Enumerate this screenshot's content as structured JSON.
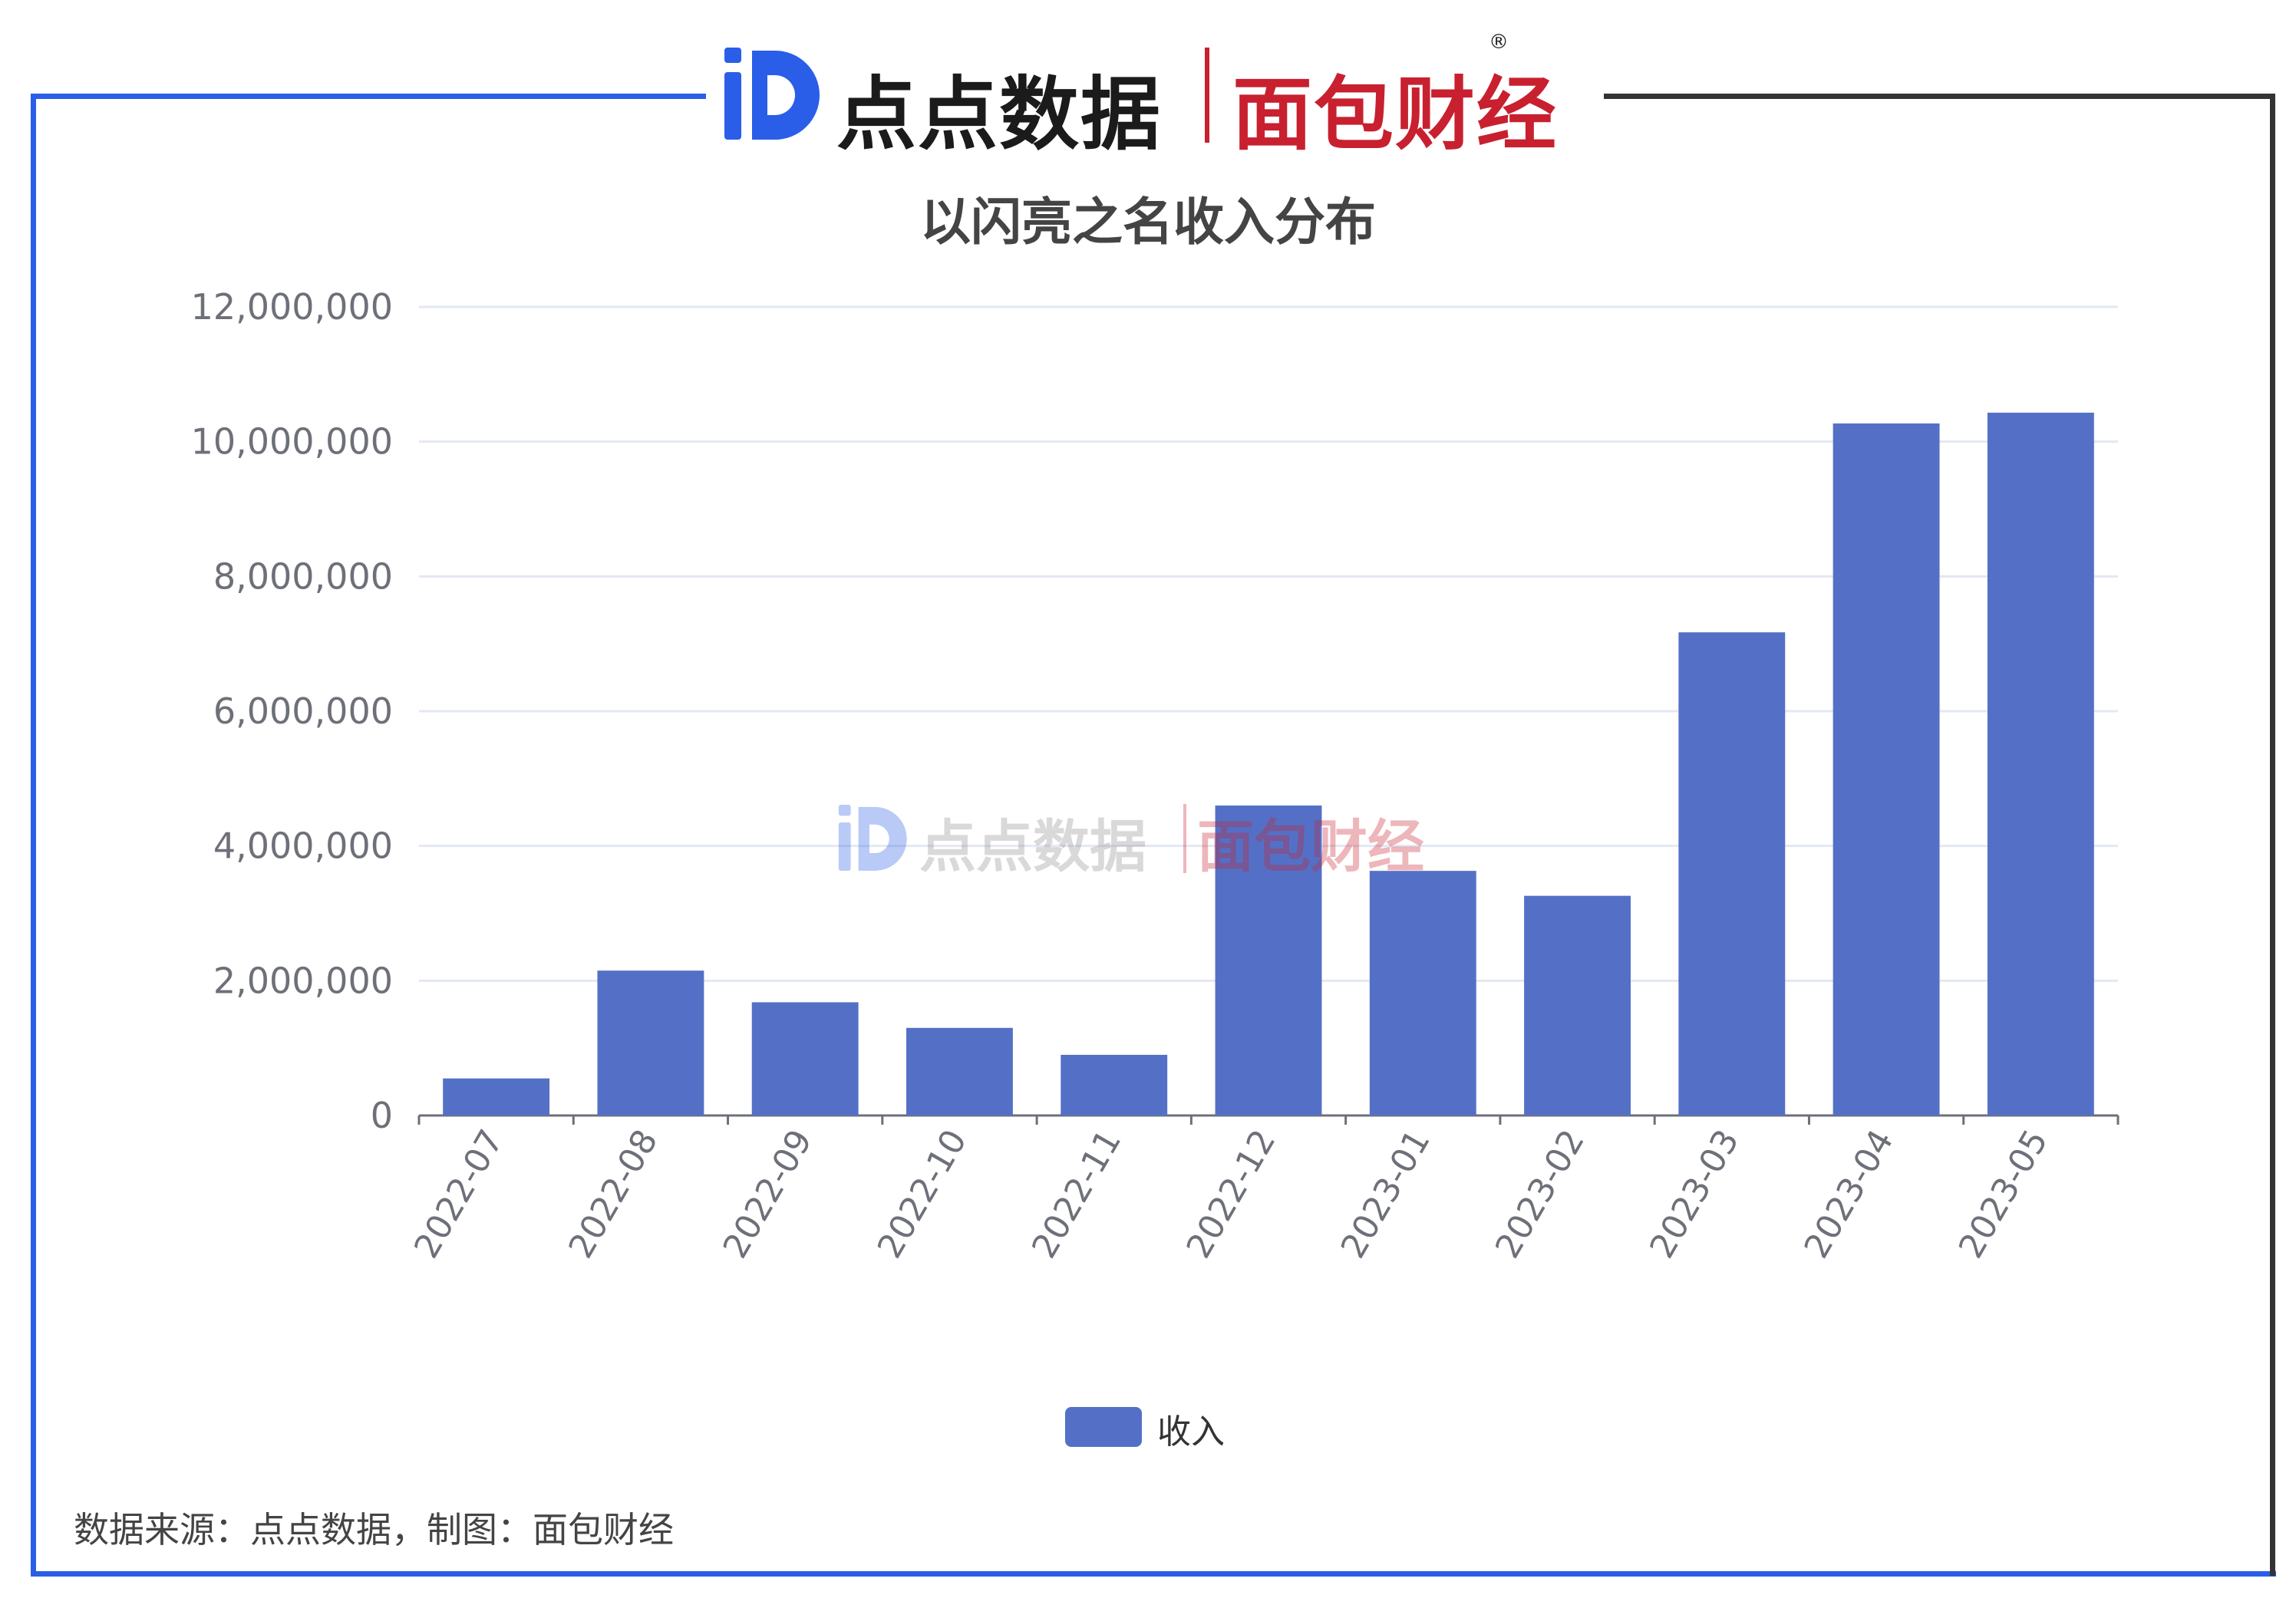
{
  "header": {
    "logo_left_text": "点点数据",
    "logo_right_text": "面包财经",
    "registered_mark": "®"
  },
  "watermark": {
    "left_text": "点点数据",
    "right_text": "面包财经"
  },
  "footer": {
    "source": "数据来源：点点数据，制图：面包财经"
  },
  "colors": {
    "bar": "#5470c6",
    "frame_blue": "#2a5ee8",
    "frame_dark": "#333333",
    "brand_red": "#c8202f",
    "brand_blue": "#2a5ee8"
  },
  "chart_data": {
    "type": "bar",
    "title": "以闪亮之名收入分布",
    "categories": [
      "2022-07",
      "2022-08",
      "2022-09",
      "2022-10",
      "2022-11",
      "2022-12",
      "2023-01",
      "2023-02",
      "2023-03",
      "2023-04",
      "2023-05"
    ],
    "series": [
      {
        "name": "收入",
        "values": [
          550000,
          2150000,
          1680000,
          1300000,
          900000,
          4600000,
          3630000,
          3260000,
          7170000,
          10270000,
          10430000
        ]
      }
    ],
    "ylim": [
      0,
      12000000
    ],
    "yticks": [
      0,
      2000000,
      4000000,
      6000000,
      8000000,
      10000000,
      12000000
    ],
    "ytick_labels": [
      "0",
      "2,000,000",
      "4,000,000",
      "6,000,000",
      "8,000,000",
      "10,000,000",
      "12,000,000"
    ],
    "xlabel": "",
    "ylabel": "",
    "grid": true,
    "legend_position": "bottom-center",
    "x_tick_rotation": "45"
  }
}
